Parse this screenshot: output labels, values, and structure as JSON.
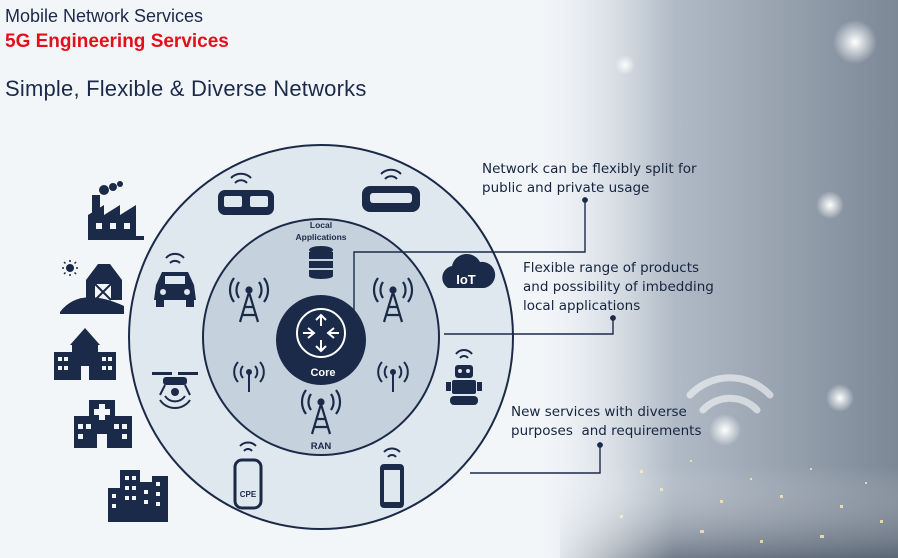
{
  "header": {
    "category": "Mobile Network Services",
    "service": "5G Engineering Services",
    "title": "Simple, Flexible & Diverse Networks"
  },
  "diagram": {
    "core_label": "Core",
    "ran_label": "RAN",
    "local_apps_label": [
      "Local",
      "Applications"
    ],
    "iot_label": "IoT",
    "cpe_label": "CPE"
  },
  "callouts": {
    "split": [
      "Network can be flexibly split for",
      "public and private usage"
    ],
    "products": [
      "Flexible range of products",
      "and possibility of imbedding",
      "local applications"
    ],
    "services": [
      "New services with diverse",
      "purposes  and requirements"
    ]
  },
  "colors": {
    "navy": "#1b2a48",
    "ring_outer": "#dfe7ef",
    "ring_inner": "#c5d1dd",
    "accent": "#e3101b"
  }
}
